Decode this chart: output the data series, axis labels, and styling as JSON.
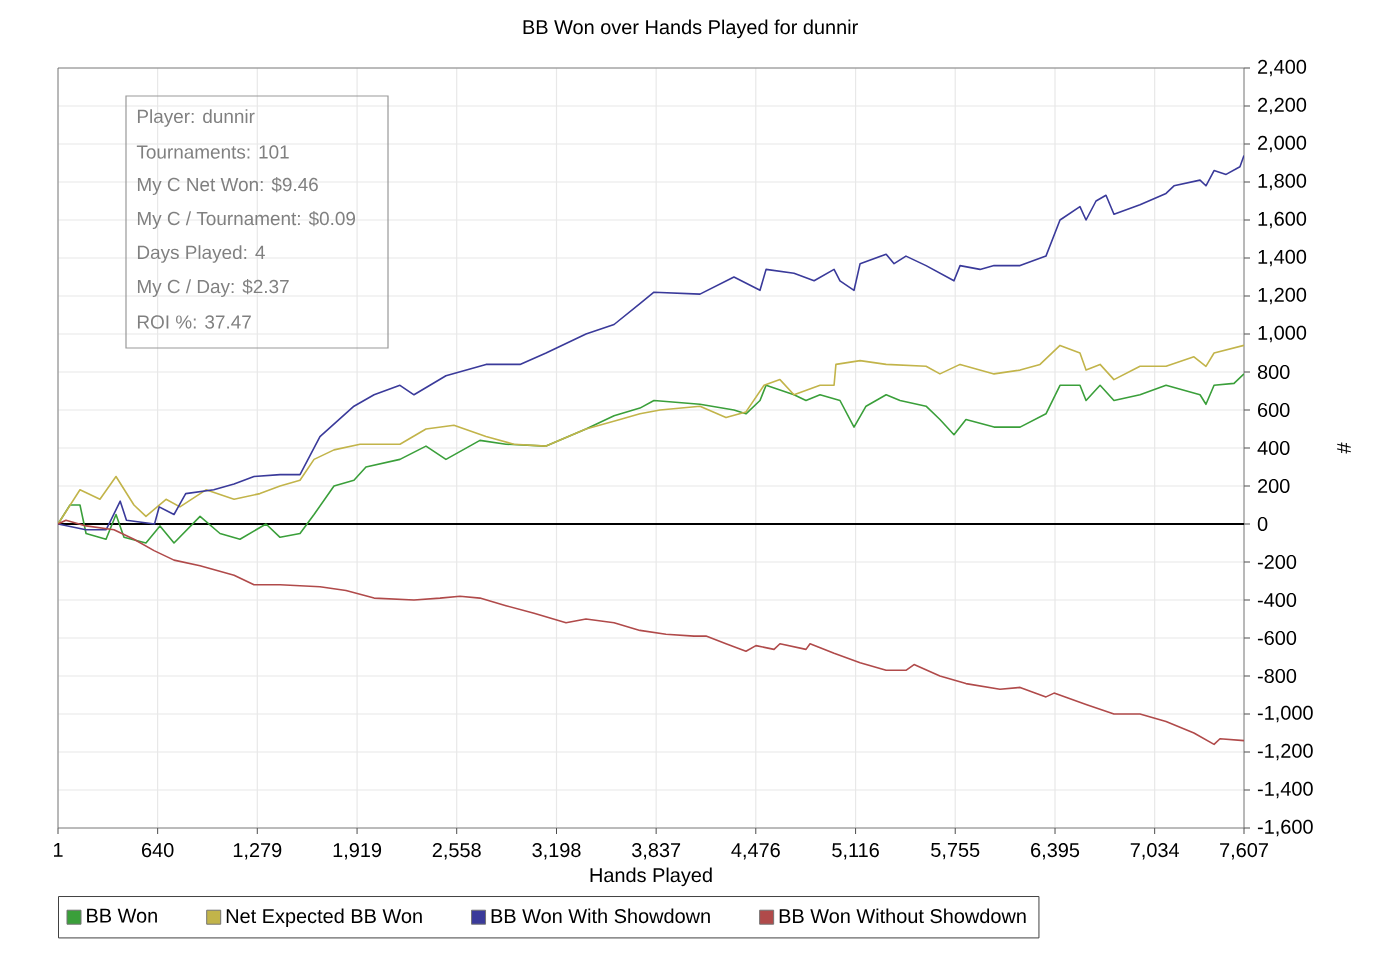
{
  "chart_data": {
    "type": "line",
    "title": "BB Won over Hands Played for dunnir",
    "xlabel": "Hands Played",
    "ylabel": "#",
    "annotations": [
      "Player: dunnir",
      "Tournaments: 101",
      "My C Net Won: $9.46",
      "My C / Tournament: $0.09",
      "Days Played: 4",
      "My C / Day: $2.37",
      "ROI %: 37.47"
    ],
    "xlim": [
      1,
      7607
    ],
    "ylim": [
      -1600,
      2400
    ],
    "xticks": [
      1,
      640,
      {
        "value": 1279,
        "label": "1,279"
      },
      {
        "value": 1919,
        "label": "1,919"
      },
      {
        "value": 2558,
        "label": "2,558"
      },
      {
        "value": 3198,
        "label": "3,198"
      },
      {
        "value": 3837,
        "label": "3,837"
      },
      {
        "value": 4476,
        "label": "4,476"
      },
      {
        "value": 5116,
        "label": "5,116"
      },
      {
        "value": 5755,
        "label": "5,755"
      },
      {
        "value": 6395,
        "label": "6,395"
      },
      {
        "value": 7034,
        "label": "7,034"
      },
      {
        "value": 7607,
        "label": "7,607"
      }
    ],
    "yticks": [
      {
        "value": -1600,
        "label": "-1,600"
      },
      {
        "value": -1400,
        "label": "-1,400"
      },
      {
        "value": -1200,
        "label": "-1,200"
      },
      {
        "value": -1000,
        "label": "-1,000"
      },
      -800,
      -600,
      -400,
      -200,
      0,
      200,
      400,
      600,
      800,
      {
        "value": 1000,
        "label": "1,000"
      },
      {
        "value": 1200,
        "label": "1,200"
      },
      {
        "value": 1400,
        "label": "1,400"
      },
      {
        "value": 1600,
        "label": "1,600"
      },
      {
        "value": 1800,
        "label": "1,800"
      },
      {
        "value": 2000,
        "label": "2,000"
      },
      {
        "value": 2200,
        "label": "2,200"
      },
      {
        "value": 2400,
        "label": "2,400"
      }
    ],
    "grid": true,
    "legend": "bottom",
    "ref_lines": [
      {
        "axis": "y",
        "value": 0,
        "color": "#000000"
      }
    ],
    "series": [
      {
        "name": "BB Won",
        "color": "#3a9f3a",
        "x": [
          1,
          78,
          142,
          181,
          309,
          373,
          424,
          565,
          655,
          745,
          912,
          1040,
          1168,
          1335,
          1425,
          1553,
          1643,
          1771,
          1899,
          1976,
          2194,
          2361,
          2489,
          2707,
          2874,
          3131,
          3387,
          3567,
          3733,
          3823,
          4118,
          4336,
          4413,
          4503,
          4542,
          4721,
          4798,
          4888,
          5016,
          5106,
          5183,
          5312,
          5401,
          5568,
          5657,
          5747,
          5824,
          6004,
          6171,
          6337,
          6427,
          6555,
          6594,
          6684,
          6773,
          6940,
          7107,
          7325,
          7363,
          7415,
          7543,
          7607
        ],
        "values": [
          0,
          100,
          100,
          -50,
          -80,
          50,
          -70,
          -100,
          -10,
          -100,
          40,
          -50,
          -80,
          0,
          -70,
          -50,
          50,
          200,
          230,
          300,
          340,
          410,
          340,
          440,
          420,
          410,
          500,
          570,
          610,
          650,
          630,
          600,
          580,
          650,
          730,
          680,
          650,
          680,
          650,
          510,
          620,
          680,
          650,
          620,
          550,
          470,
          550,
          510,
          510,
          580,
          730,
          730,
          650,
          730,
          650,
          680,
          730,
          680,
          630,
          730,
          740,
          790
        ]
      },
      {
        "name": "Net Expected BB Won",
        "color": "#c2b44a",
        "x": [
          1,
          142,
          270,
          373,
          488,
          565,
          694,
          783,
          950,
          1130,
          1296,
          1425,
          1553,
          1643,
          1771,
          1938,
          2194,
          2361,
          2540,
          2746,
          2925,
          3131,
          3387,
          3605,
          3733,
          3862,
          4118,
          4285,
          4413,
          4529,
          4631,
          4721,
          4888,
          4978,
          4990,
          5145,
          5312,
          5568,
          5657,
          5786,
          6004,
          6171,
          6299,
          6427,
          6555,
          6594,
          6684,
          6773,
          6940,
          7107,
          7286,
          7363,
          7415,
          7607
        ],
        "values": [
          0,
          180,
          130,
          250,
          100,
          40,
          130,
          90,
          180,
          130,
          160,
          200,
          230,
          340,
          390,
          420,
          420,
          500,
          520,
          460,
          420,
          410,
          500,
          550,
          580,
          600,
          620,
          560,
          590,
          730,
          760,
          680,
          730,
          730,
          840,
          860,
          840,
          830,
          790,
          840,
          790,
          810,
          840,
          940,
          900,
          810,
          840,
          760,
          830,
          830,
          880,
          830,
          900,
          940
        ]
      },
      {
        "name": "BB Won With Showdown",
        "color": "#3a3a9a",
        "x": [
          1,
          180,
          310,
          400,
          440,
          620,
          650,
          745,
          820,
          1000,
          1130,
          1258,
          1425,
          1553,
          1617,
          1681,
          1899,
          2028,
          2194,
          2284,
          2489,
          2746,
          2964,
          3131,
          3387,
          3567,
          3733,
          3823,
          4118,
          4336,
          4503,
          4542,
          4721,
          4850,
          4978,
          5016,
          5106,
          5145,
          5312,
          5363,
          5439,
          5568,
          5747,
          5786,
          5914,
          6004,
          6171,
          6337,
          6427,
          6555,
          6594,
          6658,
          6722,
          6773,
          6940,
          7107,
          7158,
          7325,
          7363,
          7415,
          7492,
          7581,
          7607
        ],
        "values": [
          0,
          -30,
          -30,
          120,
          20,
          0,
          90,
          50,
          160,
          180,
          210,
          250,
          260,
          260,
          360,
          460,
          620,
          680,
          730,
          680,
          780,
          840,
          840,
          900,
          1000,
          1050,
          1160,
          1220,
          1210,
          1300,
          1230,
          1340,
          1320,
          1280,
          1340,
          1280,
          1230,
          1370,
          1420,
          1370,
          1410,
          1360,
          1280,
          1360,
          1340,
          1360,
          1360,
          1410,
          1600,
          1670,
          1600,
          1700,
          1730,
          1630,
          1680,
          1740,
          1780,
          1810,
          1780,
          1860,
          1840,
          1880,
          1940
        ]
      },
      {
        "name": "BB Won Without Showdown",
        "color": "#b04a4a",
        "x": [
          1,
          52,
          181,
          360,
          488,
          617,
          745,
          912,
          1130,
          1258,
          1425,
          1681,
          1848,
          2028,
          2284,
          2451,
          2579,
          2707,
          2874,
          3054,
          3259,
          3387,
          3567,
          3733,
          3900,
          4080,
          4157,
          4285,
          4413,
          4477,
          4593,
          4631,
          4798,
          4824,
          4978,
          5145,
          5312,
          5439,
          5491,
          5657,
          5824,
          6042,
          6171,
          6337,
          6389,
          6594,
          6773,
          6940,
          7107,
          7286,
          7415,
          7453,
          7607
        ],
        "values": [
          0,
          20,
          -10,
          -30,
          -80,
          -140,
          -190,
          -220,
          -270,
          -320,
          -320,
          -330,
          -350,
          -390,
          -400,
          -390,
          -380,
          -390,
          -430,
          -470,
          -520,
          -500,
          -520,
          -560,
          -580,
          -590,
          -590,
          -630,
          -670,
          -640,
          -660,
          -630,
          -660,
          -630,
          -680,
          -730,
          -770,
          -770,
          -740,
          -800,
          -840,
          -870,
          -860,
          -910,
          -890,
          -950,
          -1000,
          -1000,
          -1040,
          -1100,
          -1160,
          -1130,
          -1140
        ]
      }
    ]
  }
}
